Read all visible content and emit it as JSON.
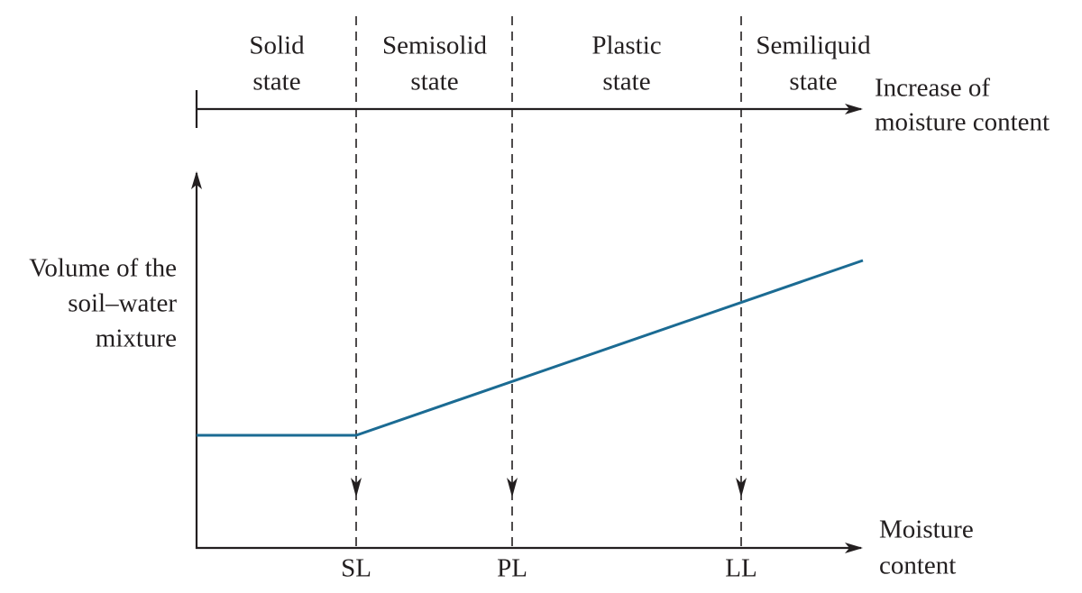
{
  "states": [
    {
      "lines": [
        "Solid",
        "state"
      ]
    },
    {
      "lines": [
        "Semisolid",
        "state"
      ]
    },
    {
      "lines": [
        "Plastic",
        "state"
      ]
    },
    {
      "lines": [
        "Semiliquid",
        "state"
      ]
    }
  ],
  "top_arrow_label": [
    "Increase of",
    "moisture content"
  ],
  "y_axis_label": [
    "Volume of the",
    "soil–water",
    "mixture"
  ],
  "x_axis_label": [
    "Moisture",
    "content"
  ],
  "limits": [
    "SL",
    "PL",
    "LL"
  ]
}
